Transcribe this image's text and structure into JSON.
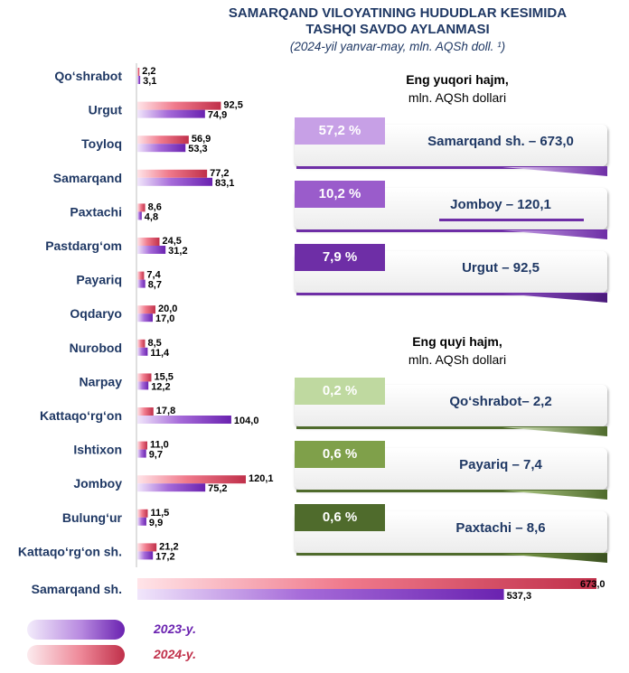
{
  "title": {
    "line1": "SAMARQAND VILOYATINING HUDUDLAR KESIMIDA",
    "line2": "TASHQI SAVDO AYLANMASI",
    "subtitle": "(2024-yil yanvar-may, mln. AQSh doll. ¹)"
  },
  "colors": {
    "y2024": "#D63A57",
    "y2023": "#7B2FBF",
    "top_accent": "#6E2EA6",
    "bottom_accent": "#4F6B2C"
  },
  "chart_data": {
    "type": "bar",
    "orientation": "horizontal",
    "categories": [
      "Qo‘shrabot",
      "Urgut",
      "Toyloq",
      "Samarqand",
      "Paxtachi",
      "Pastdarg‘om",
      "Payariq",
      "Oqdaryo",
      "Nurobod",
      "Narpay",
      "Kattaqo‘rg‘on",
      "Ishtixon",
      "Jomboy",
      "Bulung‘ur",
      "Kattaqo‘rg‘on sh.",
      "Samarqand sh."
    ],
    "series": [
      {
        "name": "2024-y.",
        "values": [
          2.2,
          92.5,
          56.9,
          77.2,
          8.6,
          24.5,
          7.4,
          20.0,
          8.5,
          15.5,
          17.8,
          11.0,
          120.1,
          11.5,
          21.2,
          673.0
        ],
        "labels": [
          "2,2",
          "92,5",
          "56,9",
          "77,2",
          "8,6",
          "24,5",
          "7,4",
          "20,0",
          "8,5",
          "15,5",
          "17,8",
          "11,0",
          "120,1",
          "11,5",
          "21,2",
          "673,0"
        ]
      },
      {
        "name": "2023-y.",
        "values": [
          3.1,
          74.9,
          53.3,
          83.1,
          4.8,
          31.2,
          8.7,
          17.0,
          11.4,
          12.2,
          104.0,
          9.7,
          75.2,
          9.9,
          17.2,
          537.3
        ],
        "labels": [
          "3,1",
          "74,9",
          "53,3",
          "83,1",
          "4,8",
          "31,2",
          "8,7",
          "17,0",
          "11,4",
          "12,2",
          "104,0",
          "9,7",
          "75,2",
          "9,9",
          "17,2",
          "537,3"
        ]
      }
    ],
    "legend": {
      "items": [
        "2023-y.",
        "2024-y."
      ],
      "position": "bottom-left"
    }
  },
  "top_panel": {
    "heading": "Eng yuqori hajm,",
    "unit": "mln. AQSh dollari",
    "items": [
      {
        "pct": "57,2 %",
        "label": "Samarqand sh. – 673,0",
        "badge_color": "#C7A0E6"
      },
      {
        "pct": "10,2 %",
        "label": "Jomboy – 120,1",
        "badge_color": "#9A5CCB"
      },
      {
        "pct": "7,9 %",
        "label": "Urgut – 92,5",
        "badge_color": "#6E2EA6"
      }
    ]
  },
  "bottom_panel": {
    "heading": "Eng quyi hajm,",
    "unit": "mln. AQSh dollari",
    "items": [
      {
        "pct": "0,2 %",
        "label": "Qo‘shrabot– 2,2",
        "badge_color": "#BFD9A0"
      },
      {
        "pct": "0,6 %",
        "label": "Payariq – 7,4",
        "badge_color": "#7FA04A"
      },
      {
        "pct": "0,6 %",
        "label": "Paxtachi – 8,6",
        "badge_color": "#4F6B2C"
      }
    ]
  }
}
